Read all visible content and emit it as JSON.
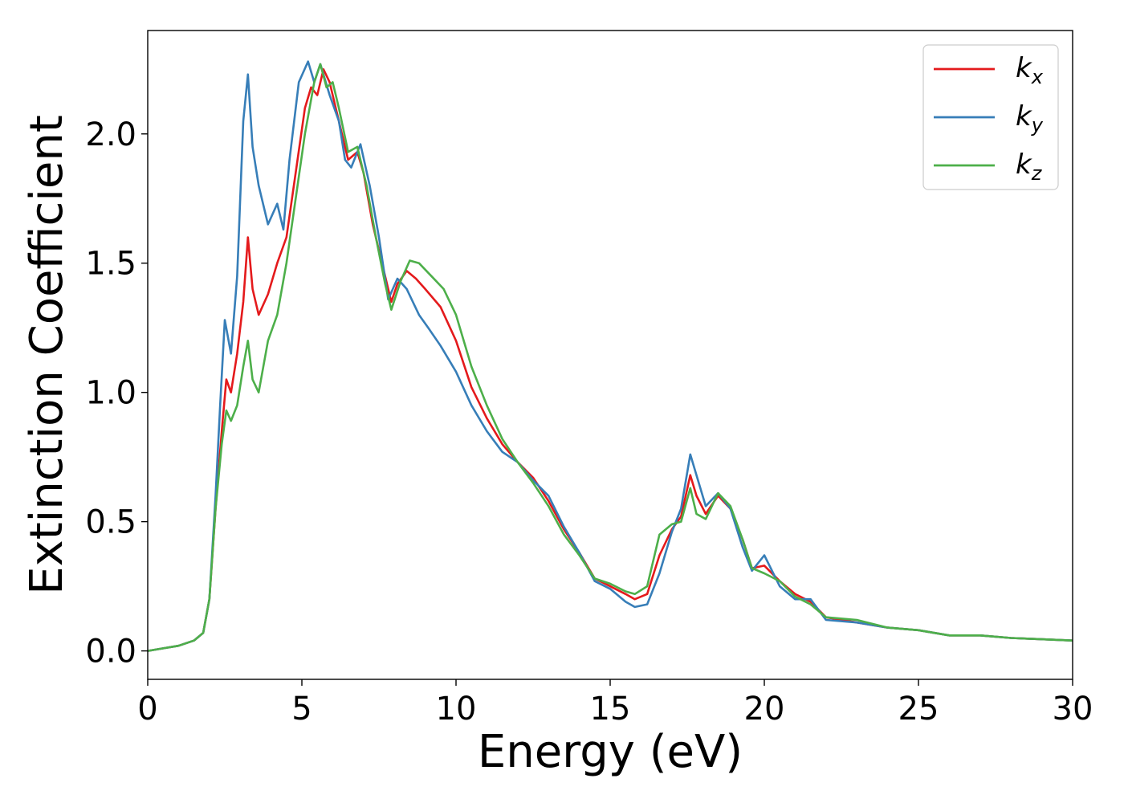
{
  "chart_data": {
    "type": "line",
    "title": "",
    "xlabel": "Energy (eV)",
    "ylabel": "Extinction Coefficient",
    "xlim": [
      0,
      30
    ],
    "ylim": [
      -0.11,
      2.4
    ],
    "xticks": [
      0,
      5,
      10,
      15,
      20,
      25,
      30
    ],
    "xtick_labels": [
      "0",
      "5",
      "10",
      "15",
      "20",
      "25",
      "30"
    ],
    "yticks": [
      0.0,
      0.5,
      1.0,
      1.5,
      2.0
    ],
    "ytick_labels": [
      "0.0",
      "0.5",
      "1.0",
      "1.5",
      "2.0"
    ],
    "grid": false,
    "legend": {
      "placement": "top-right"
    },
    "series": [
      {
        "name": "k_x",
        "label_main": "k",
        "label_sub": "x",
        "color": "#e41a1c",
        "points": [
          [
            0,
            0
          ],
          [
            0.5,
            0.01
          ],
          [
            1,
            0.02
          ],
          [
            1.5,
            0.04
          ],
          [
            1.8,
            0.07
          ],
          [
            2,
            0.2
          ],
          [
            2.2,
            0.55
          ],
          [
            2.4,
            0.85
          ],
          [
            2.55,
            1.05
          ],
          [
            2.7,
            1.0
          ],
          [
            2.9,
            1.15
          ],
          [
            3.1,
            1.35
          ],
          [
            3.25,
            1.6
          ],
          [
            3.4,
            1.4
          ],
          [
            3.6,
            1.3
          ],
          [
            3.9,
            1.38
          ],
          [
            4.2,
            1.5
          ],
          [
            4.5,
            1.6
          ],
          [
            4.8,
            1.85
          ],
          [
            5.1,
            2.1
          ],
          [
            5.3,
            2.18
          ],
          [
            5.5,
            2.15
          ],
          [
            5.7,
            2.25
          ],
          [
            5.9,
            2.2
          ],
          [
            6.1,
            2.1
          ],
          [
            6.3,
            2.0
          ],
          [
            6.5,
            1.9
          ],
          [
            6.8,
            1.93
          ],
          [
            7.0,
            1.85
          ],
          [
            7.3,
            1.65
          ],
          [
            7.6,
            1.5
          ],
          [
            7.9,
            1.35
          ],
          [
            8.1,
            1.42
          ],
          [
            8.4,
            1.47
          ],
          [
            8.7,
            1.44
          ],
          [
            9.0,
            1.4
          ],
          [
            9.5,
            1.33
          ],
          [
            10.0,
            1.2
          ],
          [
            10.5,
            1.02
          ],
          [
            11.0,
            0.9
          ],
          [
            11.5,
            0.8
          ],
          [
            12.0,
            0.73
          ],
          [
            12.5,
            0.67
          ],
          [
            13.0,
            0.58
          ],
          [
            13.5,
            0.47
          ],
          [
            14.0,
            0.38
          ],
          [
            14.5,
            0.28
          ],
          [
            15.0,
            0.25
          ],
          [
            15.5,
            0.22
          ],
          [
            15.8,
            0.2
          ],
          [
            16.2,
            0.22
          ],
          [
            16.6,
            0.37
          ],
          [
            17.0,
            0.47
          ],
          [
            17.3,
            0.52
          ],
          [
            17.6,
            0.68
          ],
          [
            17.8,
            0.6
          ],
          [
            18.1,
            0.53
          ],
          [
            18.5,
            0.6
          ],
          [
            18.9,
            0.55
          ],
          [
            19.3,
            0.43
          ],
          [
            19.6,
            0.32
          ],
          [
            20.0,
            0.33
          ],
          [
            20.5,
            0.27
          ],
          [
            21.0,
            0.22
          ],
          [
            21.5,
            0.19
          ],
          [
            22.0,
            0.13
          ],
          [
            23.0,
            0.11
          ],
          [
            24.0,
            0.09
          ],
          [
            25.0,
            0.08
          ],
          [
            26.0,
            0.06
          ],
          [
            27.0,
            0.06
          ],
          [
            28.0,
            0.05
          ],
          [
            29.0,
            0.045
          ],
          [
            30.0,
            0.04
          ]
        ]
      },
      {
        "name": "k_y",
        "label_main": "k",
        "label_sub": "y",
        "color": "#377eb8",
        "points": [
          [
            0,
            0
          ],
          [
            0.5,
            0.01
          ],
          [
            1,
            0.02
          ],
          [
            1.5,
            0.04
          ],
          [
            1.8,
            0.07
          ],
          [
            2,
            0.2
          ],
          [
            2.2,
            0.6
          ],
          [
            2.35,
            0.95
          ],
          [
            2.5,
            1.28
          ],
          [
            2.7,
            1.15
          ],
          [
            2.9,
            1.45
          ],
          [
            3.1,
            2.05
          ],
          [
            3.25,
            2.23
          ],
          [
            3.4,
            1.95
          ],
          [
            3.6,
            1.8
          ],
          [
            3.9,
            1.65
          ],
          [
            4.2,
            1.73
          ],
          [
            4.4,
            1.63
          ],
          [
            4.6,
            1.9
          ],
          [
            4.9,
            2.2
          ],
          [
            5.2,
            2.28
          ],
          [
            5.4,
            2.2
          ],
          [
            5.6,
            2.27
          ],
          [
            5.9,
            2.15
          ],
          [
            6.2,
            2.05
          ],
          [
            6.4,
            1.9
          ],
          [
            6.6,
            1.87
          ],
          [
            6.9,
            1.96
          ],
          [
            7.2,
            1.8
          ],
          [
            7.5,
            1.6
          ],
          [
            7.8,
            1.36
          ],
          [
            8.1,
            1.44
          ],
          [
            8.4,
            1.4
          ],
          [
            8.8,
            1.3
          ],
          [
            9.1,
            1.25
          ],
          [
            9.5,
            1.18
          ],
          [
            10.0,
            1.08
          ],
          [
            10.5,
            0.95
          ],
          [
            11.0,
            0.85
          ],
          [
            11.5,
            0.77
          ],
          [
            12.0,
            0.73
          ],
          [
            12.5,
            0.66
          ],
          [
            13.0,
            0.6
          ],
          [
            13.5,
            0.48
          ],
          [
            14.0,
            0.38
          ],
          [
            14.5,
            0.27
          ],
          [
            15.0,
            0.24
          ],
          [
            15.5,
            0.19
          ],
          [
            15.8,
            0.17
          ],
          [
            16.2,
            0.18
          ],
          [
            16.6,
            0.3
          ],
          [
            17.0,
            0.46
          ],
          [
            17.3,
            0.55
          ],
          [
            17.6,
            0.76
          ],
          [
            17.8,
            0.68
          ],
          [
            18.1,
            0.56
          ],
          [
            18.5,
            0.61
          ],
          [
            18.9,
            0.55
          ],
          [
            19.3,
            0.4
          ],
          [
            19.6,
            0.31
          ],
          [
            20.0,
            0.37
          ],
          [
            20.5,
            0.25
          ],
          [
            21.0,
            0.2
          ],
          [
            21.5,
            0.2
          ],
          [
            22.0,
            0.12
          ],
          [
            23.0,
            0.11
          ],
          [
            24.0,
            0.09
          ],
          [
            25.0,
            0.08
          ],
          [
            26.0,
            0.06
          ],
          [
            27.0,
            0.06
          ],
          [
            28.0,
            0.05
          ],
          [
            29.0,
            0.045
          ],
          [
            30.0,
            0.04
          ]
        ]
      },
      {
        "name": "k_z",
        "label_main": "k",
        "label_sub": "z",
        "color": "#4daf4a",
        "points": [
          [
            0,
            0
          ],
          [
            0.5,
            0.01
          ],
          [
            1,
            0.02
          ],
          [
            1.5,
            0.04
          ],
          [
            1.8,
            0.07
          ],
          [
            2,
            0.2
          ],
          [
            2.2,
            0.55
          ],
          [
            2.4,
            0.8
          ],
          [
            2.55,
            0.93
          ],
          [
            2.7,
            0.89
          ],
          [
            2.9,
            0.95
          ],
          [
            3.1,
            1.1
          ],
          [
            3.25,
            1.2
          ],
          [
            3.4,
            1.05
          ],
          [
            3.6,
            1.0
          ],
          [
            3.9,
            1.2
          ],
          [
            4.2,
            1.3
          ],
          [
            4.5,
            1.5
          ],
          [
            4.8,
            1.75
          ],
          [
            5.1,
            2.0
          ],
          [
            5.4,
            2.2
          ],
          [
            5.6,
            2.27
          ],
          [
            5.8,
            2.18
          ],
          [
            6.0,
            2.2
          ],
          [
            6.2,
            2.1
          ],
          [
            6.5,
            1.93
          ],
          [
            6.8,
            1.95
          ],
          [
            7.1,
            1.8
          ],
          [
            7.4,
            1.6
          ],
          [
            7.7,
            1.42
          ],
          [
            7.9,
            1.32
          ],
          [
            8.2,
            1.43
          ],
          [
            8.5,
            1.51
          ],
          [
            8.8,
            1.5
          ],
          [
            9.2,
            1.45
          ],
          [
            9.6,
            1.4
          ],
          [
            10.0,
            1.3
          ],
          [
            10.5,
            1.1
          ],
          [
            11.0,
            0.95
          ],
          [
            11.5,
            0.82
          ],
          [
            12.0,
            0.73
          ],
          [
            12.5,
            0.65
          ],
          [
            13.0,
            0.56
          ],
          [
            13.5,
            0.45
          ],
          [
            14.0,
            0.37
          ],
          [
            14.5,
            0.28
          ],
          [
            15.0,
            0.26
          ],
          [
            15.5,
            0.23
          ],
          [
            15.8,
            0.22
          ],
          [
            16.2,
            0.25
          ],
          [
            16.6,
            0.45
          ],
          [
            17.0,
            0.49
          ],
          [
            17.3,
            0.5
          ],
          [
            17.6,
            0.63
          ],
          [
            17.8,
            0.53
          ],
          [
            18.1,
            0.51
          ],
          [
            18.5,
            0.61
          ],
          [
            18.9,
            0.56
          ],
          [
            19.3,
            0.43
          ],
          [
            19.6,
            0.32
          ],
          [
            20.0,
            0.3
          ],
          [
            20.5,
            0.27
          ],
          [
            21.0,
            0.21
          ],
          [
            21.5,
            0.18
          ],
          [
            22.0,
            0.13
          ],
          [
            23.0,
            0.12
          ],
          [
            24.0,
            0.09
          ],
          [
            25.0,
            0.08
          ],
          [
            26.0,
            0.06
          ],
          [
            27.0,
            0.06
          ],
          [
            28.0,
            0.05
          ],
          [
            29.0,
            0.045
          ],
          [
            30.0,
            0.04
          ]
        ]
      }
    ]
  }
}
